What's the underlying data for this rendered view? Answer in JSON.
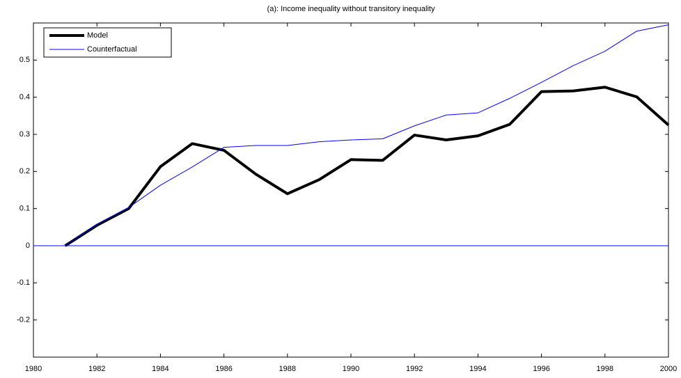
{
  "chart_data": {
    "type": "line",
    "title": "(a): Income inequality without transitory inequality",
    "x": [
      1981,
      1982,
      1983,
      1984,
      1985,
      1986,
      1987,
      1988,
      1989,
      1990,
      1991,
      1992,
      1993,
      1994,
      1995,
      1996,
      1997,
      1998,
      1999,
      2000
    ],
    "series": [
      {
        "name": "Model",
        "color": "#000000",
        "width": 4,
        "values": [
          0,
          0.055,
          0.1,
          0.213,
          0.275,
          0.257,
          0.193,
          0.14,
          0.178,
          0.232,
          0.23,
          0.298,
          0.285,
          0.296,
          0.327,
          0.415,
          0.417,
          0.427,
          0.401,
          0.325
        ]
      },
      {
        "name": "Counterfactual",
        "color": "#0000ff",
        "width": 1,
        "values": [
          0,
          0.058,
          0.103,
          0.163,
          0.212,
          0.265,
          0.27,
          0.27,
          0.28,
          0.285,
          0.288,
          0.323,
          0.352,
          0.358,
          0.397,
          0.44,
          0.485,
          0.524,
          0.578,
          0.595
        ]
      }
    ],
    "hline": {
      "value": 0,
      "color": "#0000ff"
    },
    "xlim": [
      1980,
      2000
    ],
    "xticks": [
      1980,
      1982,
      1984,
      1986,
      1988,
      1990,
      1992,
      1994,
      1996,
      1998,
      2000
    ],
    "ylim": [
      -0.3,
      0.6
    ],
    "yticks": [
      -0.2,
      -0.1,
      0,
      0.1,
      0.2,
      0.3,
      0.4,
      0.5
    ],
    "grid": false,
    "legend": "top-left"
  }
}
